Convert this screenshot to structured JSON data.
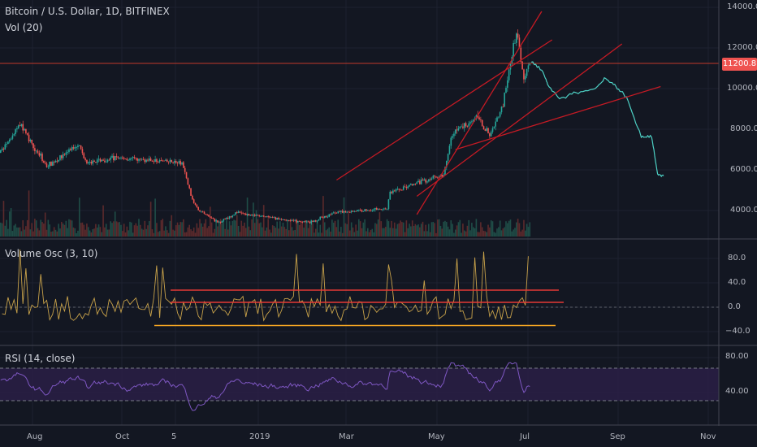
{
  "header": {
    "symbol_line": "Bitcoin / U.S. Dollar, 1D, BITFINEX",
    "volume_label": "Vol (20)"
  },
  "panes": {
    "volume_osc_label": "Volume Osc (3, 10)",
    "rsi_label": "RSI (14, close)"
  },
  "price_axis": {
    "ticks": [
      "14000.0",
      "12000.0",
      "10000.0",
      "8000.0",
      "6000.0",
      "4000.0"
    ],
    "current_price": "11200.8",
    "current_price_color": "#ef5350"
  },
  "osc_axis": {
    "ticks": [
      "80.0",
      "40.0",
      "0.0",
      "−40.0"
    ]
  },
  "rsi_axis": {
    "ticks": [
      "80.00",
      "40.00"
    ]
  },
  "time_axis": {
    "ticks": [
      "Aug",
      "Oct",
      "5",
      "2019",
      "Mar",
      "May",
      "Jul",
      "Sep",
      "Nov"
    ]
  },
  "colors": {
    "background": "#131722",
    "up": "#26a69a",
    "down": "#ef5350",
    "projection": "#4dd0c4",
    "trendline": "#c41a24",
    "osc_line": "#c8a24a",
    "rsi_line": "#7e57c2",
    "rsi_band": "#2a1f45"
  },
  "chart_data": {
    "type": "candlestick",
    "title": "Bitcoin / U.S. Dollar, 1D, BITFINEX",
    "y_range": [
      3000,
      14000
    ],
    "x_range": [
      "2018-07-01",
      "2019-11-10"
    ],
    "price_anchors": [
      [
        "2018-07-01",
        6300
      ],
      [
        "2018-07-10",
        6600
      ],
      [
        "2018-07-20",
        7400
      ],
      [
        "2018-07-27",
        8300
      ],
      [
        "2018-08-03",
        7400
      ],
      [
        "2018-08-14",
        6200
      ],
      [
        "2018-08-25",
        6700
      ],
      [
        "2018-09-04",
        7300
      ],
      [
        "2018-09-10",
        6300
      ],
      [
        "2018-09-20",
        6500
      ],
      [
        "2018-10-01",
        6600
      ],
      [
        "2018-10-15",
        6500
      ],
      [
        "2018-11-13",
        6350
      ],
      [
        "2018-11-20",
        4500
      ],
      [
        "2018-11-25",
        4000
      ],
      [
        "2018-12-07",
        3400
      ],
      [
        "2018-12-20",
        3900
      ],
      [
        "2018-12-27",
        3800
      ],
      [
        "2019-01-15",
        3600
      ],
      [
        "2019-02-07",
        3400
      ],
      [
        "2019-02-24",
        3900
      ],
      [
        "2019-03-31",
        4100
      ],
      [
        "2019-04-02",
        4900
      ],
      [
        "2019-04-23",
        5400
      ],
      [
        "2019-05-08",
        5800
      ],
      [
        "2019-05-14",
        7800
      ],
      [
        "2019-05-30",
        8600
      ],
      [
        "2019-06-08",
        7700
      ],
      [
        "2019-06-17",
        9200
      ],
      [
        "2019-06-26",
        12800
      ],
      [
        "2019-07-01",
        10600
      ],
      [
        "2019-07-05",
        11200
      ]
    ],
    "projection_anchors": [
      [
        "2019-07-06",
        11300
      ],
      [
        "2019-07-14",
        10800
      ],
      [
        "2019-07-17",
        10200
      ],
      [
        "2019-07-25",
        9500
      ],
      [
        "2019-08-05",
        9800
      ],
      [
        "2019-08-18",
        10000
      ],
      [
        "2019-08-25",
        10500
      ],
      [
        "2019-09-01",
        10100
      ],
      [
        "2019-09-08",
        9600
      ],
      [
        "2019-09-18",
        7600
      ],
      [
        "2019-09-25",
        7600
      ],
      [
        "2019-09-29",
        5800
      ],
      [
        "2019-10-03",
        5700
      ]
    ],
    "trendlines": [
      {
        "from": [
          "2019-02-25",
          5500
        ],
        "to": [
          "2019-07-20",
          12400
        ]
      },
      {
        "from": [
          "2019-04-20",
          3800
        ],
        "to": [
          "2019-07-13",
          13800
        ]
      },
      {
        "from": [
          "2019-04-20",
          4700
        ],
        "to": [
          "2019-09-05",
          12200
        ]
      },
      {
        "from": [
          "2019-05-16",
          7000
        ],
        "to": [
          "2019-10-01",
          10100
        ]
      }
    ],
    "osc_levels": [
      28,
      8,
      -30
    ],
    "rsi_bands": [
      70,
      30
    ]
  }
}
